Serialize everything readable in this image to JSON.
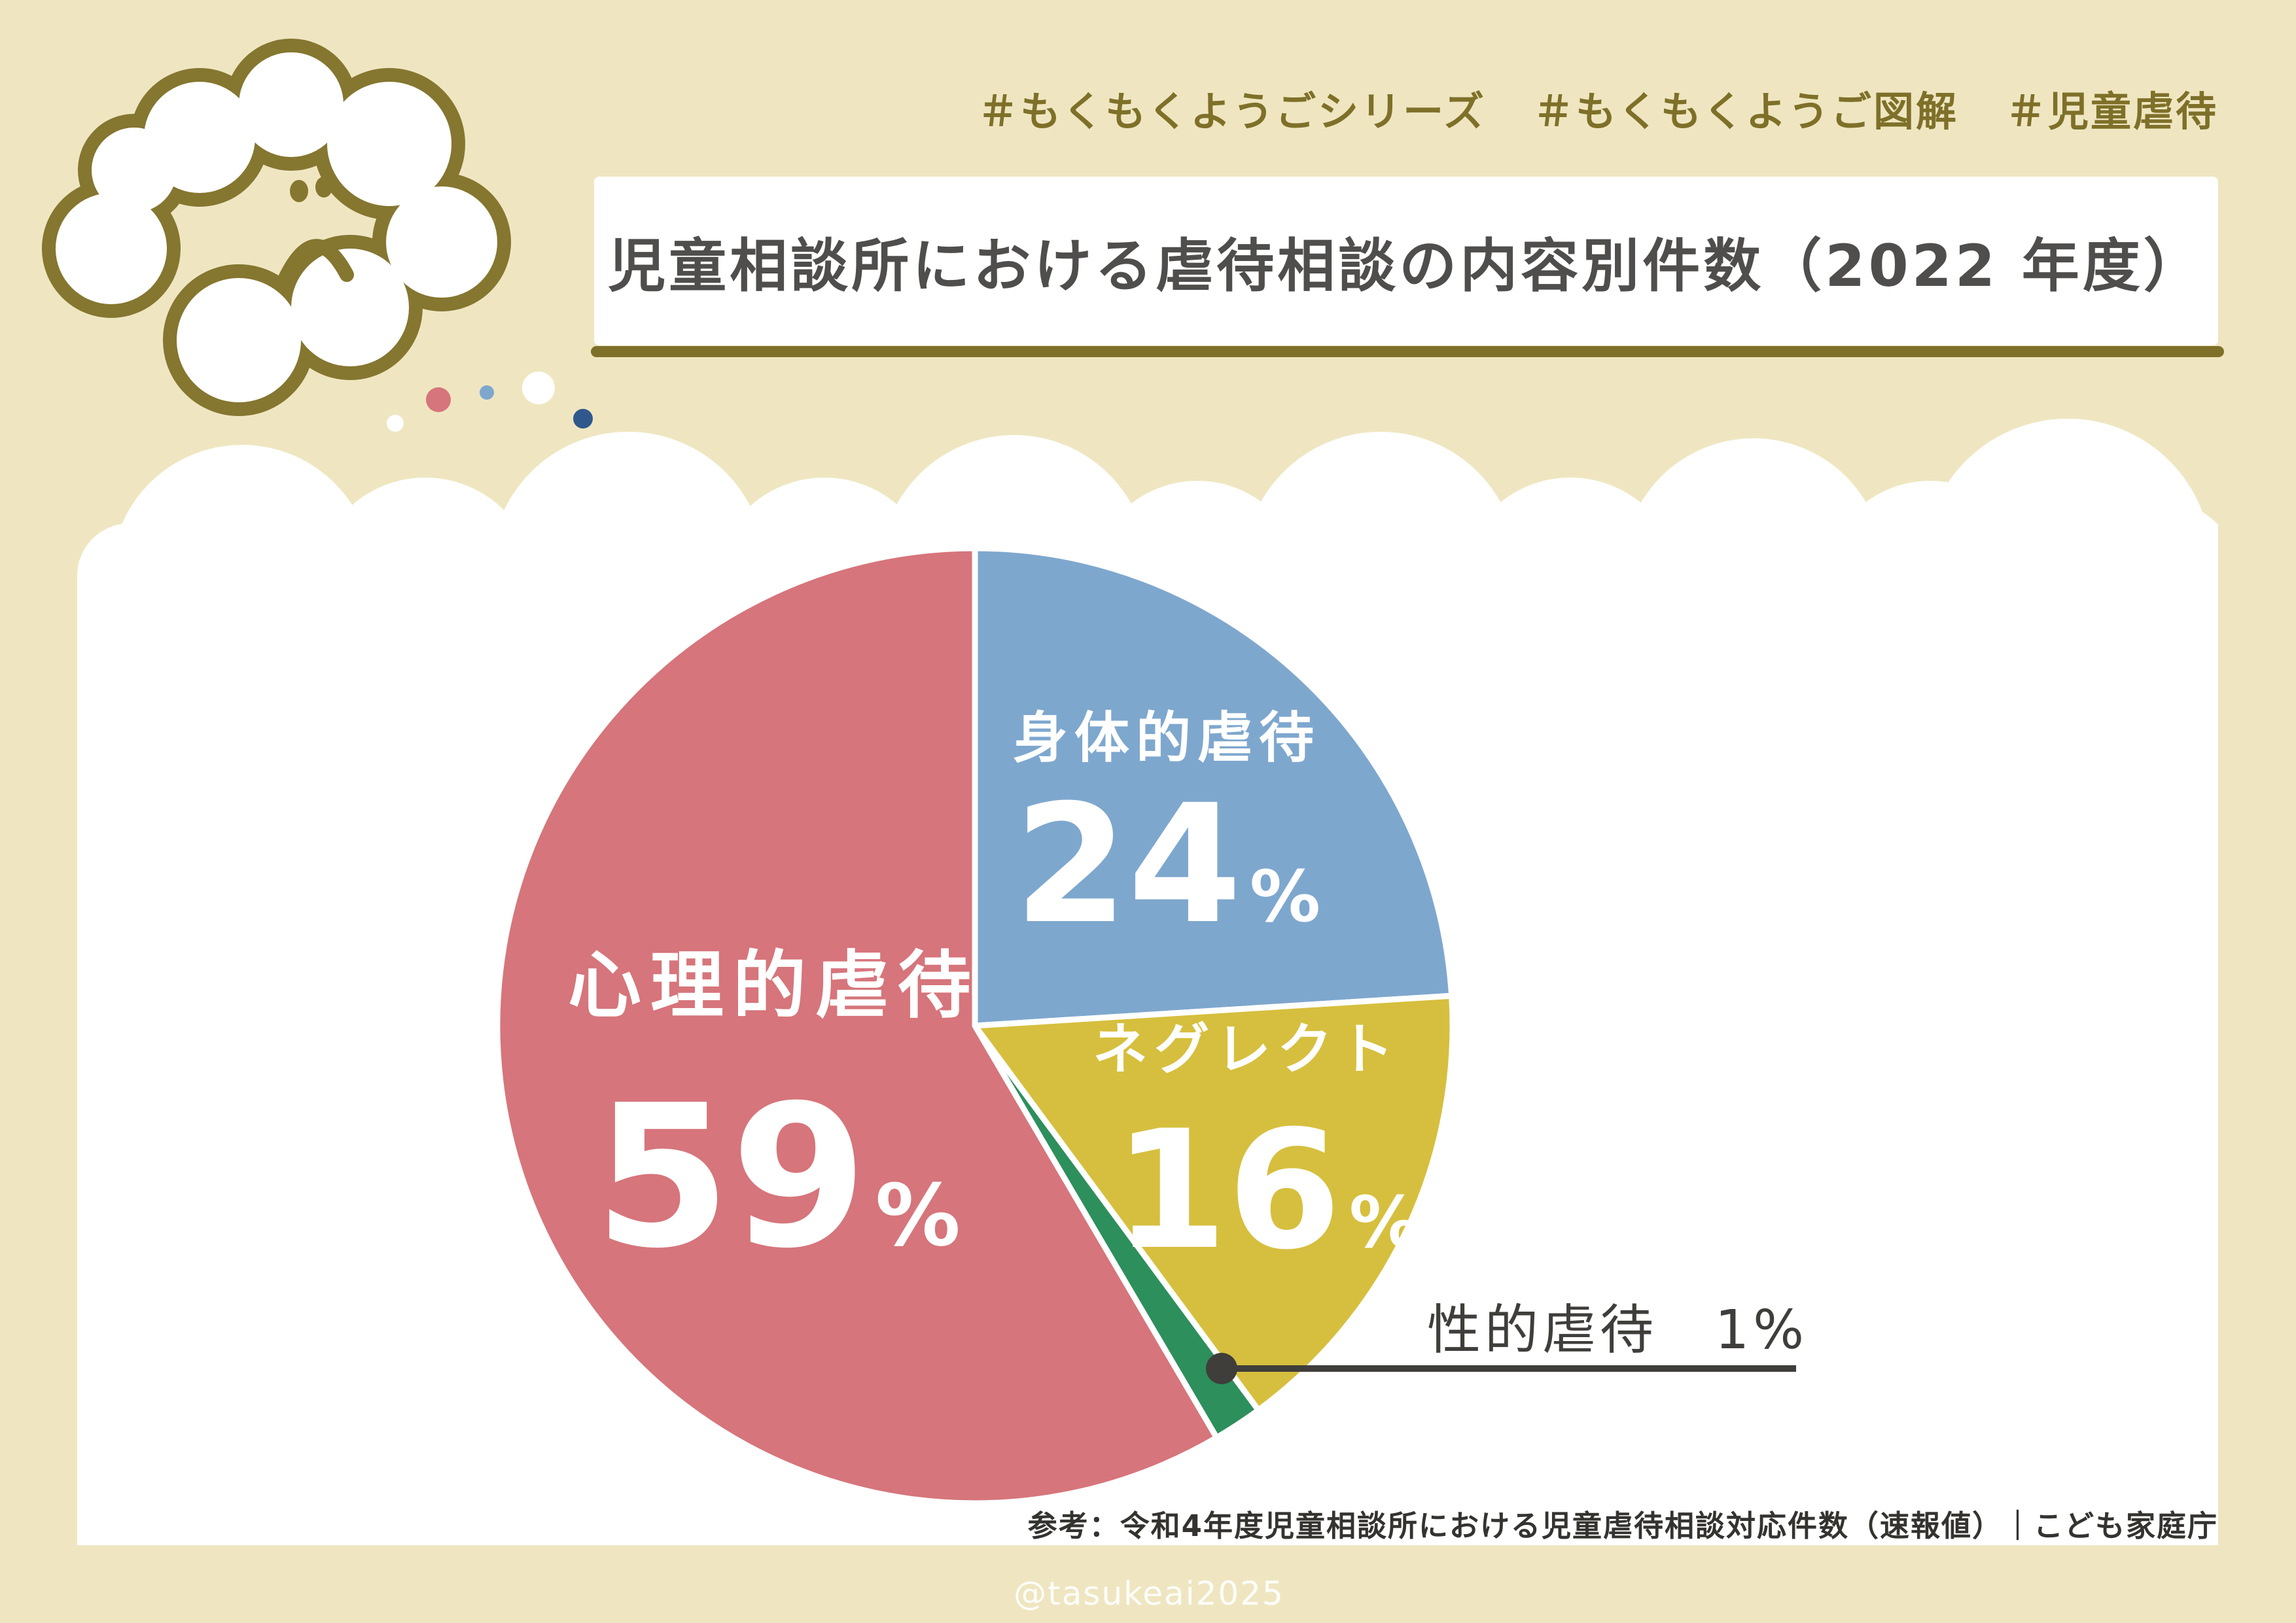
{
  "theme": {
    "background": "#efe6c1",
    "panel": "#ffffff",
    "olive": "#7e7029",
    "olive_dark": "#857630",
    "title_text": "#4f4e4c",
    "footnote_text": "#34332f",
    "callout_text": "#3f3e3b",
    "watermark_text": "#ffffff"
  },
  "header": {
    "hashtags": [
      "＃もくもくようごシリーズ",
      "＃もくもくようご図解",
      "＃児童虐待"
    ]
  },
  "title": {
    "text": "児童相談所における虐待相談の内容別件数（2022 年度）"
  },
  "mascot": {
    "icon": "sad-cloud-icon"
  },
  "decor_dot_colors": [
    "#ffffff",
    "#d6757b",
    "#7ea7ce",
    "#ffffff",
    "#30588c"
  ],
  "chart_data": {
    "type": "pie",
    "title": "児童相談所における虐待相談の内容別件数（2022年度）",
    "unit": "percent",
    "percent_sign": "%",
    "clockwise_from_top": true,
    "legend_position": "labels-inside-slices",
    "categories": [
      "身体的虐待",
      "ネグレクト",
      "性的虐待",
      "心理的虐待"
    ],
    "values": [
      24,
      16,
      1,
      59
    ],
    "segments": [
      {
        "key": "physical",
        "label": "身体的虐待",
        "value": 24,
        "color": "#7ea7ce",
        "display_start_deg": 0,
        "display_end_deg": 86.4
      },
      {
        "key": "neglect",
        "label": "ネグレクト",
        "value": 16,
        "color": "#d6bf3e",
        "display_start_deg": 86.4,
        "display_end_deg": 143.6
      },
      {
        "key": "sexual",
        "label": "性的虐待",
        "value": 1,
        "color": "#2d8f5c",
        "display_start_deg": 143.6,
        "display_end_deg": 149.6
      },
      {
        "key": "psychological",
        "label": "心理的虐待",
        "value": 59,
        "color": "#d6757b",
        "display_start_deg": 149.6,
        "display_end_deg": 360
      }
    ],
    "callout": {
      "text": "性的虐待　1%"
    }
  },
  "footer": {
    "reference": "参考：令和4年度児童相談所における児童虐待相談対応件数（速報値）｜こども家庭庁",
    "watermark": "@tasukeai2025"
  }
}
